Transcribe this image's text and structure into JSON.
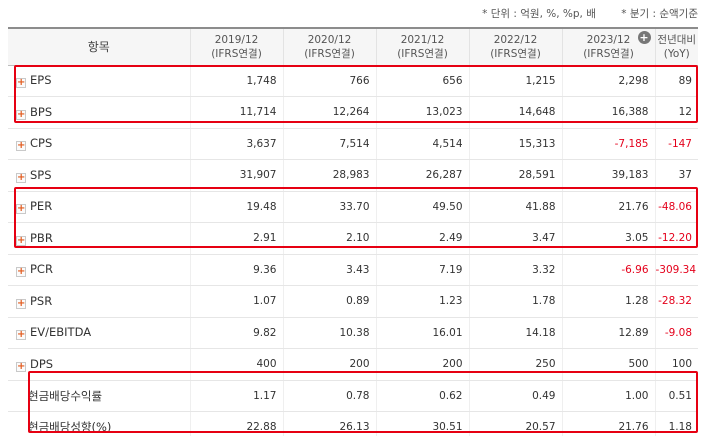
{
  "notes": {
    "unit": "* 단위 : 억원, %, %p, 배",
    "period": "* 분기 : 순액기준"
  },
  "header": {
    "item_label": "항목",
    "years": [
      {
        "year": "2019/12",
        "basis": "(IFRS연결)"
      },
      {
        "year": "2020/12",
        "basis": "(IFRS연결)"
      },
      {
        "year": "2021/12",
        "basis": "(IFRS연결)"
      },
      {
        "year": "2022/12",
        "basis": "(IFRS연결)"
      },
      {
        "year": "2023/12",
        "basis": "(IFRS연결)"
      }
    ],
    "expand_icon": "plus-circle-icon",
    "yoy": {
      "line1": "전년대비",
      "line2": "(YoY)"
    }
  },
  "rows": [
    {
      "name": "EPS",
      "values": [
        "1,748",
        "766",
        "656",
        "1,215",
        "2,298"
      ],
      "yoy": "89"
    },
    {
      "name": "BPS",
      "values": [
        "11,714",
        "12,264",
        "13,023",
        "14,648",
        "16,388"
      ],
      "yoy": "12"
    },
    {
      "name": "CPS",
      "values": [
        "3,637",
        "7,514",
        "4,514",
        "15,313",
        "-7,185"
      ],
      "yoy": "-147"
    },
    {
      "name": "SPS",
      "values": [
        "31,907",
        "28,983",
        "26,287",
        "28,591",
        "39,183"
      ],
      "yoy": "37"
    },
    {
      "name": "PER",
      "values": [
        "19.48",
        "33.70",
        "49.50",
        "41.88",
        "21.76"
      ],
      "yoy": "-48.06"
    },
    {
      "name": "PBR",
      "values": [
        "2.91",
        "2.10",
        "2.49",
        "3.47",
        "3.05"
      ],
      "yoy": "-12.20"
    },
    {
      "name": "PCR",
      "values": [
        "9.36",
        "3.43",
        "7.19",
        "3.32",
        "-6.96"
      ],
      "yoy": "-309.34"
    },
    {
      "name": "PSR",
      "values": [
        "1.07",
        "0.89",
        "1.23",
        "1.78",
        "1.28"
      ],
      "yoy": "-28.32"
    },
    {
      "name": "EV/EBITDA",
      "values": [
        "9.82",
        "10.38",
        "16.01",
        "14.18",
        "12.89"
      ],
      "yoy": "-9.08"
    },
    {
      "name": "DPS",
      "values": [
        "400",
        "200",
        "200",
        "250",
        "500"
      ],
      "yoy": "100"
    },
    {
      "name": "현금배당수익률",
      "values": [
        "1.17",
        "0.78",
        "0.62",
        "0.49",
        "1.00"
      ],
      "yoy": "0.51"
    },
    {
      "name": "현금배당성향(%)",
      "values": [
        "22.88",
        "26.13",
        "30.51",
        "20.57",
        "21.76"
      ],
      "yoy": "1.18"
    }
  ],
  "colors": {
    "highlight": "#e60012",
    "negative": "#e4001b",
    "header_bg": "#f6f6f6"
  }
}
